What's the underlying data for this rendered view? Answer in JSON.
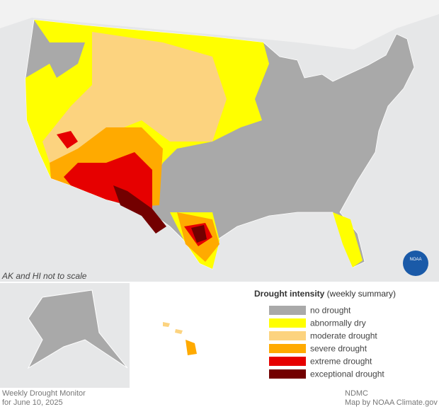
{
  "map": {
    "note": "AK and HI not to scale",
    "logo": "NOAA"
  },
  "legend": {
    "title": "Drought intensity",
    "subtitle": "(weekly summary)",
    "items": [
      {
        "label": "no drought",
        "color": "#a9a9a9"
      },
      {
        "label": "abnormally dry",
        "color": "#ffff00"
      },
      {
        "label": "moderate drought",
        "color": "#fcd37f"
      },
      {
        "label": "severe drought",
        "color": "#ffaa00"
      },
      {
        "label": "extreme drought",
        "color": "#e60000"
      },
      {
        "label": "exceptional drought",
        "color": "#730000"
      }
    ]
  },
  "footer": {
    "left": [
      "Weekly Drought Monitor",
      "for June 10, 2025"
    ],
    "right": [
      "NDMC",
      "Map by NOAA Climate.gov"
    ]
  }
}
